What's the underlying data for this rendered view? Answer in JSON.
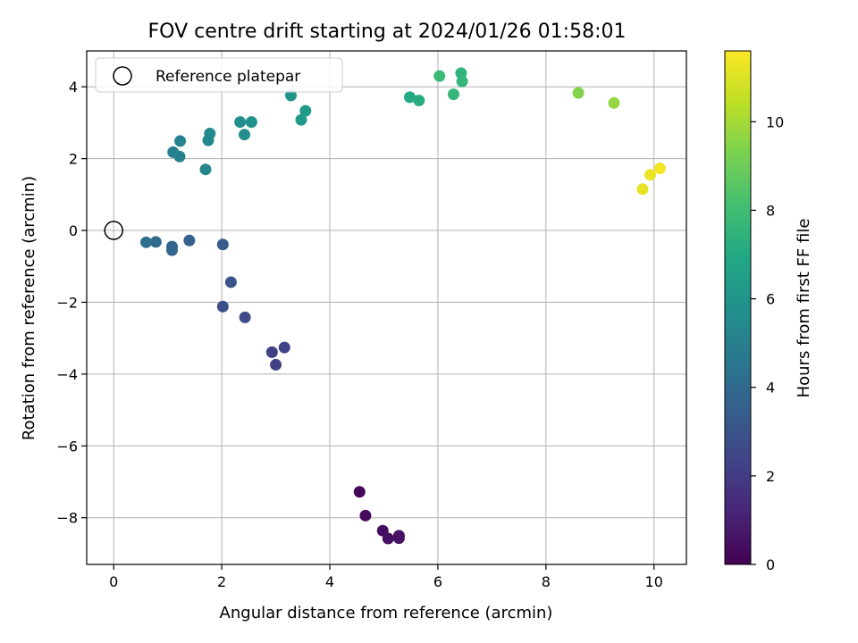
{
  "chart_data": {
    "type": "scatter",
    "title": "FOV centre drift starting at 2024/01/26 01:58:01",
    "xlabel": "Angular distance from reference (arcmin)",
    "ylabel": "Rotation from reference (arcmin)",
    "xlim": [
      -0.5,
      10.6
    ],
    "ylim": [
      -9.3,
      5.0
    ],
    "x_ticks": [
      0,
      2,
      4,
      6,
      8,
      10
    ],
    "y_ticks": [
      -8,
      -6,
      -4,
      -2,
      0,
      2,
      4
    ],
    "x_tick_labels": [
      "0",
      "2",
      "4",
      "6",
      "8",
      "10"
    ],
    "y_tick_labels": [
      "−8",
      "−6",
      "−4",
      "−2",
      "0",
      "2",
      "4"
    ],
    "grid": true,
    "legend": {
      "placement": "top-left",
      "entries": [
        {
          "label": "Reference platepar",
          "marker": "open-circle"
        }
      ]
    },
    "reference_point": {
      "x": 0,
      "y": 0
    },
    "colorbar": {
      "label": "Hours from first FF file",
      "range": [
        0,
        11.6
      ],
      "ticks": [
        0,
        2,
        4,
        6,
        8,
        10
      ],
      "tick_labels": [
        "0",
        "2",
        "4",
        "6",
        "8",
        "10"
      ],
      "colormap": "viridis"
    },
    "points": [
      {
        "x": 4.55,
        "y": -7.28,
        "h": 0.2
      },
      {
        "x": 4.66,
        "y": -7.94,
        "h": 0.3
      },
      {
        "x": 4.98,
        "y": -8.36,
        "h": 0.4
      },
      {
        "x": 5.08,
        "y": -8.58,
        "h": 0.5
      },
      {
        "x": 5.28,
        "y": -8.5,
        "h": 0.55
      },
      {
        "x": 5.28,
        "y": -8.57,
        "h": 0.6
      },
      {
        "x": 2.93,
        "y": -3.39,
        "h": 2.1
      },
      {
        "x": 3.0,
        "y": -3.74,
        "h": 2.2
      },
      {
        "x": 3.16,
        "y": -3.26,
        "h": 2.3
      },
      {
        "x": 2.43,
        "y": -2.42,
        "h": 2.6
      },
      {
        "x": 2.02,
        "y": -2.12,
        "h": 2.8
      },
      {
        "x": 2.17,
        "y": -1.44,
        "h": 3.0
      },
      {
        "x": 2.02,
        "y": -0.39,
        "h": 3.3
      },
      {
        "x": 1.4,
        "y": -0.28,
        "h": 3.6
      },
      {
        "x": 1.08,
        "y": -0.45,
        "h": 3.8
      },
      {
        "x": 1.08,
        "y": -0.55,
        "h": 3.85
      },
      {
        "x": 0.78,
        "y": -0.32,
        "h": 4.0
      },
      {
        "x": 0.6,
        "y": -0.33,
        "h": 4.2
      },
      {
        "x": 1.1,
        "y": 2.18,
        "h": 5.0
      },
      {
        "x": 1.22,
        "y": 2.06,
        "h": 5.05
      },
      {
        "x": 1.23,
        "y": 2.49,
        "h": 5.1
      },
      {
        "x": 1.7,
        "y": 1.7,
        "h": 5.3
      },
      {
        "x": 1.75,
        "y": 2.51,
        "h": 5.4
      },
      {
        "x": 1.78,
        "y": 2.7,
        "h": 5.45
      },
      {
        "x": 2.42,
        "y": 2.67,
        "h": 5.6
      },
      {
        "x": 2.34,
        "y": 3.02,
        "h": 5.7
      },
      {
        "x": 2.55,
        "y": 3.02,
        "h": 5.8
      },
      {
        "x": 3.28,
        "y": 3.76,
        "h": 6.0
      },
      {
        "x": 3.47,
        "y": 3.08,
        "h": 6.2
      },
      {
        "x": 3.55,
        "y": 3.33,
        "h": 6.3
      },
      {
        "x": 5.48,
        "y": 3.71,
        "h": 7.0
      },
      {
        "x": 5.65,
        "y": 3.62,
        "h": 7.2
      },
      {
        "x": 6.03,
        "y": 4.3,
        "h": 7.8
      },
      {
        "x": 6.29,
        "y": 3.79,
        "h": 7.6
      },
      {
        "x": 6.43,
        "y": 4.38,
        "h": 7.5
      },
      {
        "x": 6.45,
        "y": 4.15,
        "h": 7.6
      },
      {
        "x": 8.6,
        "y": 3.83,
        "h": 9.4
      },
      {
        "x": 9.26,
        "y": 3.55,
        "h": 9.7
      },
      {
        "x": 9.79,
        "y": 1.15,
        "h": 11.2
      },
      {
        "x": 9.93,
        "y": 1.55,
        "h": 11.3
      },
      {
        "x": 10.11,
        "y": 1.73,
        "h": 11.4
      }
    ]
  }
}
